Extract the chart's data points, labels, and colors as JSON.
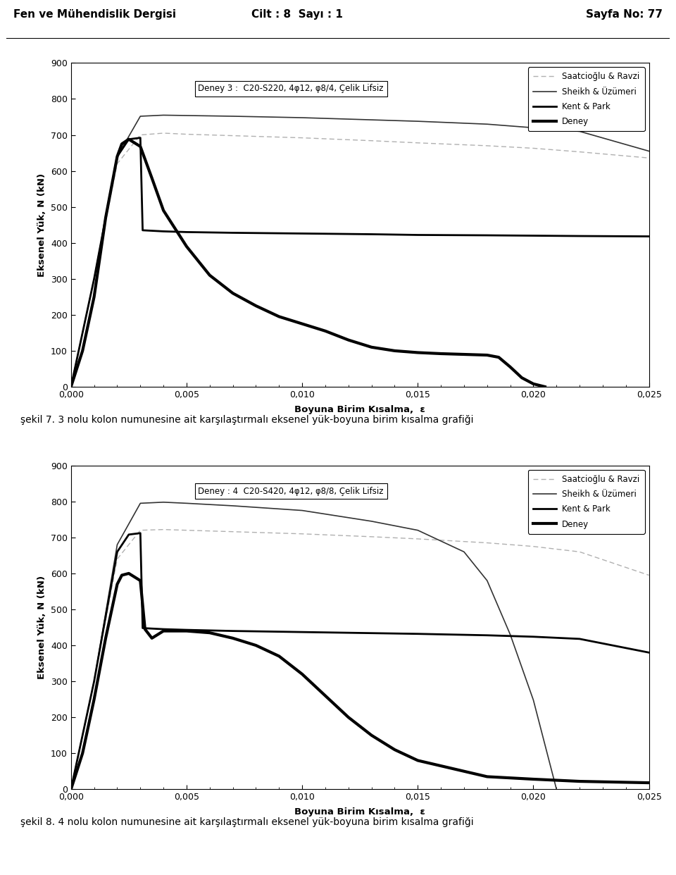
{
  "header_left": "Fen ve Mühendislik Dergisi",
  "header_center": "Cilt : 8  Sayı : 1",
  "header_right": "Sayfa No: 77",
  "caption1": "şekil 7. 3 nolu kolon numunesine ait karşılaştırmalı eksenel yük-boyuna birim kısalma grafiği",
  "caption2": "şekil 8. 4 nolu kolon numunesine ait karşılaştırmalı eksenel yük-boyuna birim kısalma grafiği",
  "chart1": {
    "title_bold": "Deney 3 :  ",
    "title_normal": "C20-S220, 4φ12, φ8/4, Çelik Lifsiz",
    "ylabel": "Eksenel Yük, N (kN)",
    "xlabel": "Boyuna Birim Kısalma,  ε",
    "ylim": [
      0,
      900
    ],
    "xlim": [
      0.0,
      0.025
    ],
    "yticks": [
      0,
      100,
      200,
      300,
      400,
      500,
      600,
      700,
      800,
      900
    ],
    "xticks": [
      0.0,
      0.005,
      0.01,
      0.015,
      0.02,
      0.025
    ],
    "xtick_labels": [
      "0,000",
      "0,005",
      "0,010",
      "0,015",
      "0,020",
      "0,025"
    ],
    "saatcioglu_x": [
      0.0,
      0.001,
      0.002,
      0.003,
      0.004,
      0.005,
      0.007,
      0.01,
      0.013,
      0.015,
      0.018,
      0.02,
      0.022,
      0.025
    ],
    "saatcioglu_y": [
      0,
      300,
      620,
      700,
      705,
      702,
      698,
      692,
      684,
      678,
      670,
      663,
      653,
      636
    ],
    "sheikh_x": [
      0.0,
      0.001,
      0.002,
      0.003,
      0.004,
      0.005,
      0.007,
      0.01,
      0.013,
      0.015,
      0.018,
      0.02,
      0.022,
      0.025
    ],
    "sheikh_y": [
      0,
      300,
      640,
      752,
      755,
      754,
      752,
      748,
      742,
      738,
      730,
      720,
      710,
      655
    ],
    "kent_x": [
      0.0,
      0.001,
      0.002,
      0.0025,
      0.003,
      0.0031,
      0.004,
      0.005,
      0.007,
      0.01,
      0.013,
      0.015,
      0.018,
      0.02,
      0.022,
      0.025
    ],
    "kent_y": [
      0,
      300,
      640,
      688,
      692,
      435,
      432,
      430,
      428,
      426,
      424,
      422,
      421,
      420,
      419,
      418
    ],
    "deney_x": [
      0.0,
      0.0005,
      0.001,
      0.0015,
      0.002,
      0.0022,
      0.0025,
      0.003,
      0.0035,
      0.004,
      0.005,
      0.006,
      0.007,
      0.008,
      0.009,
      0.01,
      0.011,
      0.012,
      0.013,
      0.014,
      0.015,
      0.016,
      0.017,
      0.018,
      0.0185,
      0.019,
      0.0195,
      0.02,
      0.0205
    ],
    "deney_y": [
      0,
      100,
      250,
      470,
      640,
      675,
      688,
      668,
      580,
      490,
      390,
      310,
      260,
      225,
      195,
      175,
      155,
      130,
      110,
      100,
      95,
      92,
      90,
      88,
      82,
      55,
      25,
      8,
      0
    ]
  },
  "chart2": {
    "title_bold": "Deney : 4  ",
    "title_normal": "C20-S420, 4φ12, φ8/8, Çelik Lifsiz",
    "ylabel": "Eksenel Yük, N (kN)",
    "xlabel": "Boyuna Birim Kısalma,  ε",
    "ylim": [
      0,
      900
    ],
    "xlim": [
      0.0,
      0.025
    ],
    "yticks": [
      0,
      100,
      200,
      300,
      400,
      500,
      600,
      700,
      800,
      900
    ],
    "xticks": [
      0.0,
      0.005,
      0.01,
      0.015,
      0.02,
      0.025
    ],
    "xtick_labels": [
      "0,000",
      "0,005",
      "0,010",
      "0,015",
      "0,020",
      "0,025"
    ],
    "saatcioglu_x": [
      0.0,
      0.001,
      0.002,
      0.003,
      0.004,
      0.005,
      0.007,
      0.01,
      0.013,
      0.015,
      0.018,
      0.02,
      0.022,
      0.025
    ],
    "saatcioglu_y": [
      0,
      300,
      640,
      720,
      722,
      720,
      716,
      710,
      702,
      696,
      685,
      675,
      660,
      595
    ],
    "sheikh_x": [
      0.0,
      0.001,
      0.002,
      0.003,
      0.004,
      0.005,
      0.007,
      0.01,
      0.013,
      0.015,
      0.017,
      0.018,
      0.019,
      0.02,
      0.021
    ],
    "sheikh_y": [
      0,
      300,
      680,
      795,
      798,
      795,
      788,
      775,
      745,
      720,
      660,
      580,
      430,
      248,
      0
    ],
    "kent_x": [
      0.0,
      0.001,
      0.002,
      0.0025,
      0.003,
      0.0031,
      0.004,
      0.005,
      0.007,
      0.01,
      0.013,
      0.015,
      0.018,
      0.02,
      0.022,
      0.025
    ],
    "kent_y": [
      0,
      300,
      660,
      708,
      712,
      448,
      445,
      443,
      440,
      437,
      434,
      432,
      428,
      424,
      418,
      380
    ],
    "deney_x": [
      0.0,
      0.0005,
      0.001,
      0.0015,
      0.002,
      0.0022,
      0.0025,
      0.003,
      0.0032,
      0.0035,
      0.004,
      0.005,
      0.006,
      0.007,
      0.008,
      0.009,
      0.01,
      0.011,
      0.012,
      0.013,
      0.014,
      0.015,
      0.018,
      0.02,
      0.022,
      0.025
    ],
    "deney_y": [
      0,
      100,
      250,
      420,
      570,
      595,
      600,
      580,
      445,
      420,
      440,
      440,
      435,
      420,
      400,
      370,
      320,
      260,
      200,
      150,
      110,
      80,
      35,
      28,
      22,
      18
    ]
  },
  "legend_labels": [
    "Saatcioğlu & Ravzi",
    "Sheikh & Üzümeri",
    "Kent & Park",
    "Deney"
  ]
}
